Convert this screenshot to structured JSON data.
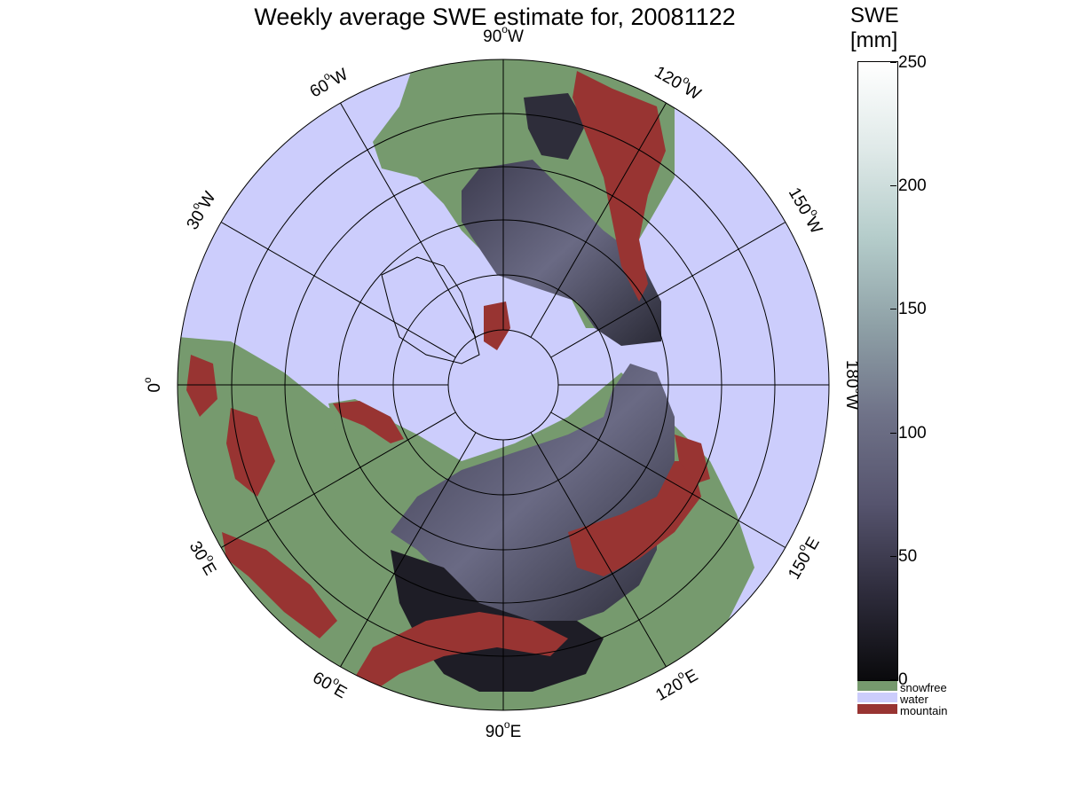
{
  "title": "Weekly average SWE estimate for, 20081122",
  "colorbar": {
    "title_line1": "SWE",
    "title_line2": "[mm]",
    "ticks": [
      "250",
      "200",
      "150",
      "100",
      "50",
      "0"
    ],
    "range": [
      0,
      250
    ],
    "gradient_colors": [
      "#0a0a0c",
      "#2e2c3c",
      "#56546e",
      "#6f7288",
      "#8ea0a6",
      "#b4ccca",
      "#dfe9e8",
      "#ffffff"
    ],
    "categories": [
      {
        "name": "snowfree",
        "color": "#769a6e"
      },
      {
        "name": "water",
        "color": "#cccdfc"
      },
      {
        "name": "mountain",
        "color": "#983432"
      }
    ]
  },
  "map": {
    "projection": "north polar stereographic",
    "ocean_color": "#cccdfc",
    "land_color": "#769a6e",
    "snow_color": "#4a4960",
    "mountain_color": "#983432",
    "longitude_labels": [
      {
        "deg": "90",
        "hem": "W"
      },
      {
        "deg": "120",
        "hem": "W"
      },
      {
        "deg": "150",
        "hem": "W"
      },
      {
        "deg": "180",
        "hem": "W"
      },
      {
        "deg": "150",
        "hem": "E"
      },
      {
        "deg": "120",
        "hem": "E"
      },
      {
        "deg": "90",
        "hem": "E"
      },
      {
        "deg": "60",
        "hem": "E"
      },
      {
        "deg": "30",
        "hem": "E"
      },
      {
        "deg": "0",
        "hem": ""
      },
      {
        "deg": "30",
        "hem": "W"
      },
      {
        "deg": "60",
        "hem": "W"
      }
    ]
  }
}
